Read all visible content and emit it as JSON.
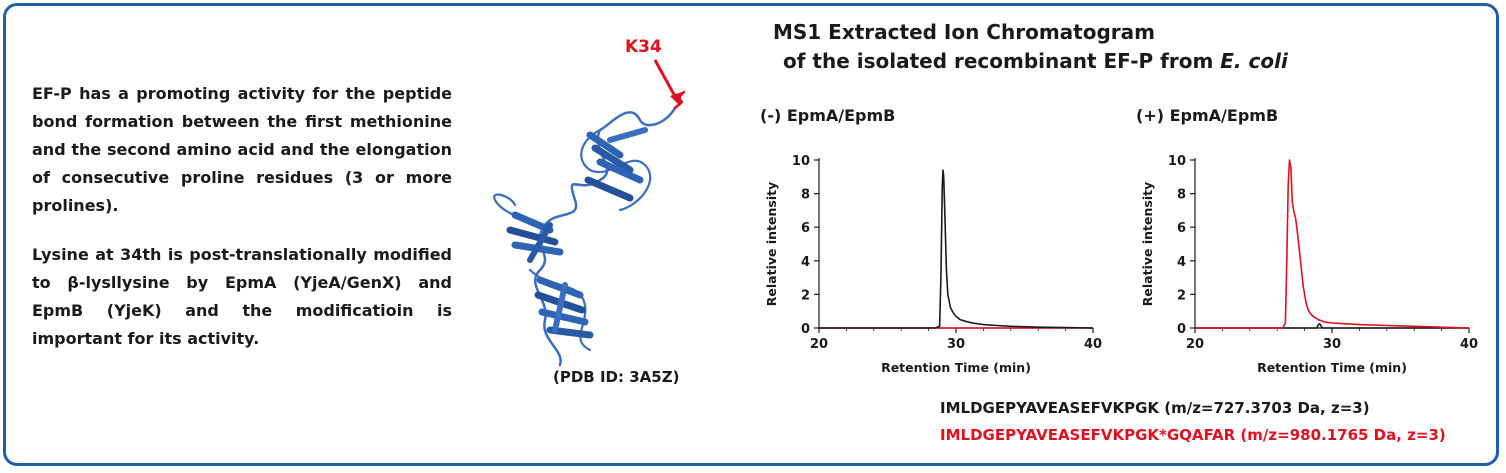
{
  "description": {
    "paragraph1": "EF-P has a promoting activity for the peptide bond formation between the first methionine and the second amino acid and the elongation of consecutive proline residues (3 or more prolines).",
    "paragraph2": "Lysine at 34th is post-translationally modified to β-lysllysine by EpmA (YjeA/GenX) and EpmB (YjeK) and the modificatioin is important for its activity."
  },
  "structure": {
    "residue_label": "K34",
    "pdb_label": "(PDB ID: 3A5Z)"
  },
  "ms": {
    "title_line1": "MS1 Extracted Ion Chromatogram",
    "title_line2_prefix": "of the isolated recombinant EF-P from ",
    "title_line2_italic": "E. coli"
  },
  "peptides": {
    "unmodified": "IMLDGEPYAVEASEFVKPGK (m/z=727.3703 Da, z=3)",
    "modified": "IMLDGEPYAVEASEFVKPGK*GQAFAR (m/z=980.1765 Da, z=3)"
  },
  "colors": {
    "unmodified": "#1a1a1a",
    "modified": "#e0101e",
    "frame": "#1f5fa8",
    "protein": "#2f63b3"
  },
  "chart_data": [
    {
      "type": "line",
      "title": "(-) EpmA/EpmB",
      "xlabel": "Retention Time (min)",
      "ylabel": "Relative intensity",
      "xlim": [
        20,
        40
      ],
      "ylim": [
        0,
        10
      ],
      "xticks": [
        20,
        30,
        40
      ],
      "yticks": [
        0,
        2,
        4,
        6,
        8,
        10
      ],
      "series": [
        {
          "color": "#1a1a1a",
          "x": [
            20,
            28.5,
            28.8,
            28.9,
            29.0,
            29.05,
            29.1,
            29.2,
            29.3,
            29.4,
            29.6,
            29.8,
            30.0,
            30.3,
            30.7,
            31.2,
            32,
            33,
            34,
            36,
            38,
            40
          ],
          "y": [
            0,
            0,
            0.1,
            3.0,
            8.5,
            9.4,
            9.0,
            6.5,
            3.5,
            2.0,
            1.2,
            0.9,
            0.7,
            0.5,
            0.4,
            0.3,
            0.2,
            0.15,
            0.1,
            0.05,
            0.03,
            0
          ]
        },
        {
          "color": "#e0101e",
          "x": [
            20,
            40
          ],
          "y": [
            0,
            0
          ]
        }
      ]
    },
    {
      "type": "line",
      "title": "(+) EpmA/EpmB",
      "xlabel": "Retention Time (min)",
      "ylabel": "Relative intensity",
      "xlim": [
        20,
        40
      ],
      "ylim": [
        0,
        10
      ],
      "xticks": [
        20,
        30,
        40
      ],
      "yticks": [
        0,
        2,
        4,
        6,
        8,
        10
      ],
      "series": [
        {
          "color": "#e0101e",
          "x": [
            20,
            26.4,
            26.6,
            26.7,
            26.8,
            26.9,
            27.0,
            27.1,
            27.2,
            27.35,
            27.5,
            27.7,
            27.9,
            28.1,
            28.3,
            28.6,
            29.0,
            29.5,
            30,
            31,
            32,
            34,
            36,
            38,
            40
          ],
          "y": [
            0,
            0,
            0.3,
            4.0,
            8.5,
            10.0,
            9.5,
            7.5,
            7.0,
            6.5,
            5.5,
            4.0,
            2.5,
            1.5,
            1.0,
            0.7,
            0.5,
            0.35,
            0.3,
            0.25,
            0.2,
            0.15,
            0.1,
            0.05,
            0
          ]
        },
        {
          "color": "#1a1a1a",
          "x": [
            20,
            28.9,
            29.0,
            29.1,
            29.3,
            40
          ],
          "y": [
            0,
            0,
            0.2,
            0.25,
            0,
            0
          ]
        }
      ]
    }
  ]
}
